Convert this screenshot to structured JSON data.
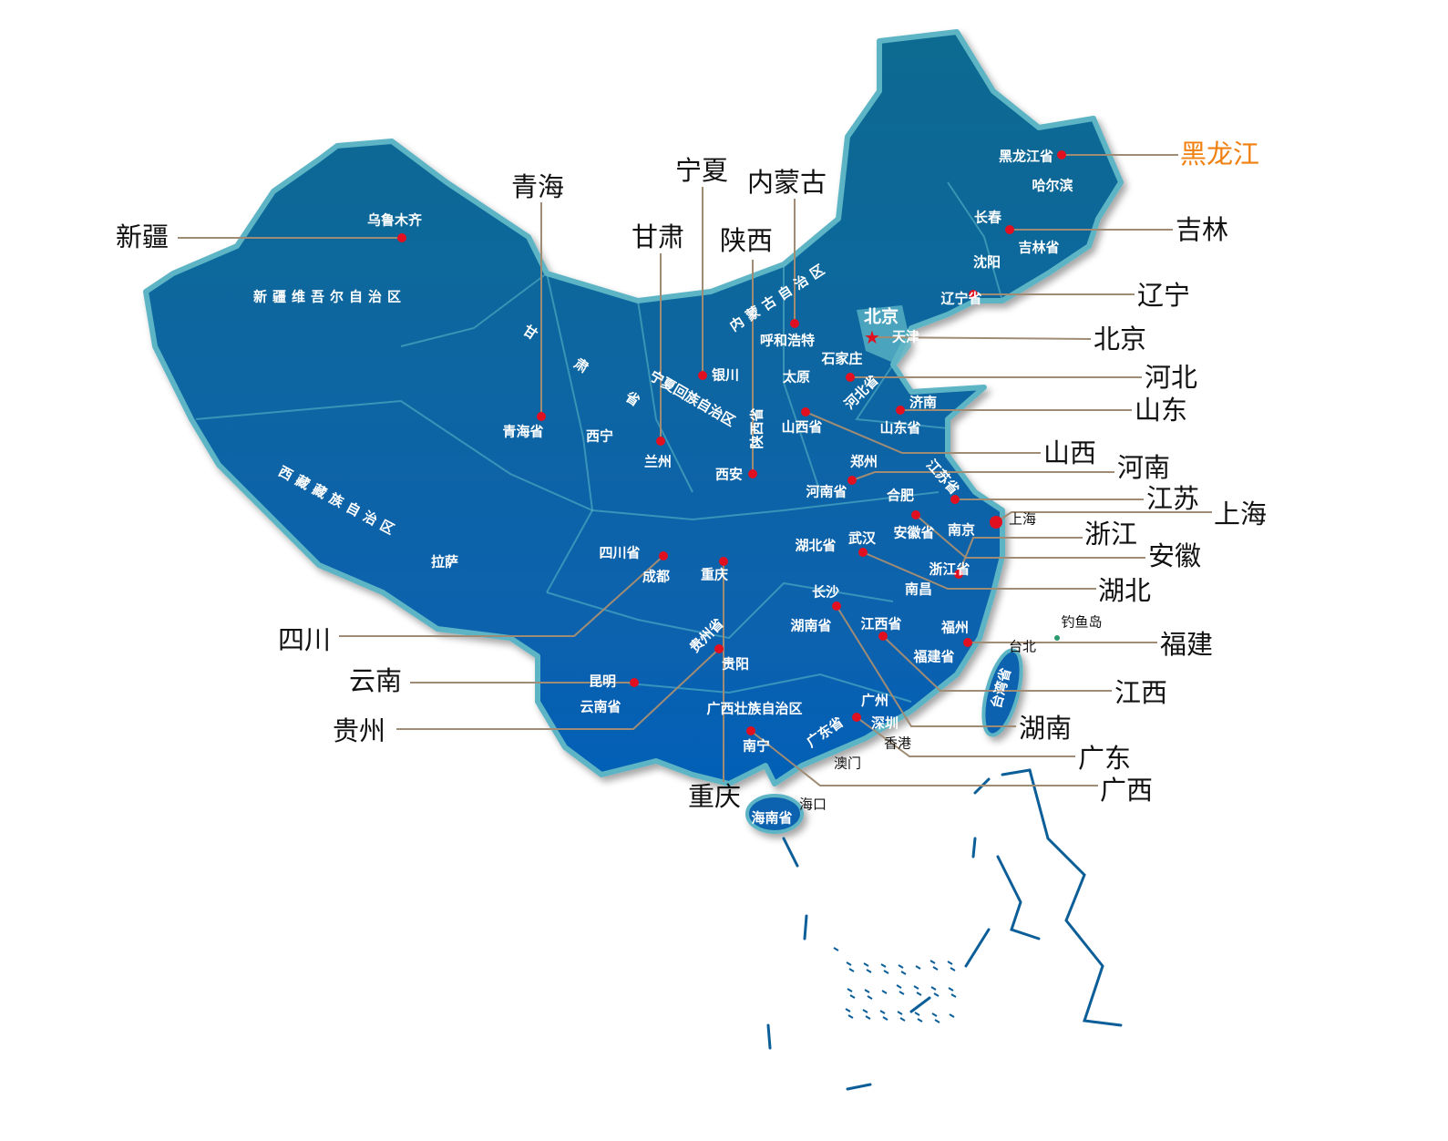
{
  "colors": {
    "map_top": "#0b6a90",
    "map_bottom": "#0660b6",
    "border": "#5cb4c4",
    "dot": "#e01020",
    "leader": "#a08c74",
    "highlight": "#f08010",
    "label": "#111111"
  },
  "provinces": [
    {
      "name": "黑龙江",
      "highlight": true
    },
    {
      "name": "吉林"
    },
    {
      "name": "辽宁"
    },
    {
      "name": "北京"
    },
    {
      "name": "河北"
    },
    {
      "name": "山东"
    },
    {
      "name": "山西"
    },
    {
      "name": "河南"
    },
    {
      "name": "江苏"
    },
    {
      "name": "上海"
    },
    {
      "name": "浙江"
    },
    {
      "name": "安徽"
    },
    {
      "name": "湖北"
    },
    {
      "name": "福建"
    },
    {
      "name": "江西"
    },
    {
      "name": "湖南"
    },
    {
      "name": "广东"
    },
    {
      "name": "广西"
    },
    {
      "name": "重庆"
    },
    {
      "name": "贵州"
    },
    {
      "name": "云南"
    },
    {
      "name": "四川"
    },
    {
      "name": "新疆"
    },
    {
      "name": "青海"
    },
    {
      "name": "宁夏"
    },
    {
      "name": "甘肃"
    },
    {
      "name": "陕西"
    },
    {
      "name": "内蒙古"
    }
  ],
  "places": [
    "乌鲁木齐",
    "新疆维吾尔自治区",
    "青海省",
    "西宁",
    "兰州",
    "银川",
    "呼和浩特",
    "太原",
    "石家庄",
    "北京",
    "天津",
    "济南",
    "山东省",
    "山西省",
    "郑州",
    "河南省",
    "合肥",
    "安徽省",
    "南京",
    "上海",
    "西安",
    "四川省",
    "成都",
    "重庆",
    "湖北省",
    "武汉",
    "浙江省",
    "南昌",
    "长沙",
    "湖南省",
    "江西省",
    "福州",
    "台北",
    "福建省",
    "贵阳",
    "昆明",
    "云南省",
    "广西壮族自治区",
    "广州",
    "深圳",
    "香港",
    "澳门",
    "南宁",
    "海口",
    "海南省",
    "拉萨",
    "黑龙江省",
    "哈尔滨",
    "长春",
    "吉林省",
    "沈阳",
    "辽宁省",
    "钓鱼岛",
    "西藏藏族自治区",
    "内蒙古自治区",
    "宁夏回族自治区",
    "陕西省",
    "甘肃省",
    "河北省",
    "江苏省",
    "贵州省",
    "广东省",
    "台湾省"
  ]
}
